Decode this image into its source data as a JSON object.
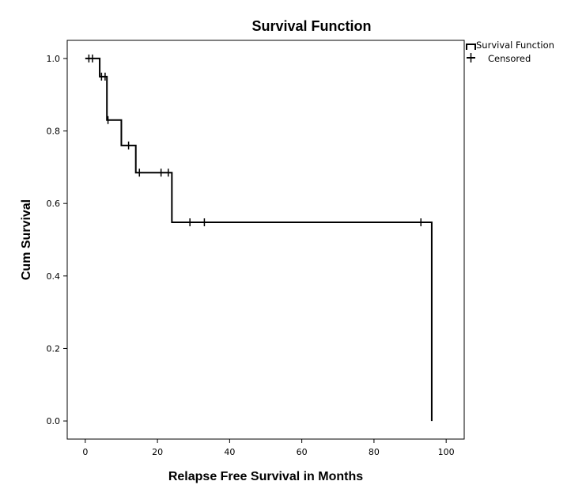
{
  "chart_data": {
    "type": "line",
    "title": "Survival Function",
    "xlabel": "Relapse Free Survival in Months",
    "ylabel": "Cum Survival",
    "xlim": [
      -5,
      105
    ],
    "ylim": [
      -0.05,
      1.05
    ],
    "x_ticks": [
      0,
      20,
      40,
      60,
      80,
      100
    ],
    "x_tick_labels": [
      "0",
      "20",
      "40",
      "60",
      "80",
      "100"
    ],
    "y_ticks": [
      0.0,
      0.2,
      0.4,
      0.6,
      0.8,
      1.0
    ],
    "y_tick_labels": [
      "0.0",
      "0.2",
      "0.4",
      "0.6",
      "0.8",
      "1.0"
    ],
    "grid": false,
    "legend_position": "top-right outside",
    "legend": [
      {
        "label": "Survival Function",
        "symbol": "step"
      },
      {
        "label": "Censored",
        "symbol": "plus"
      }
    ],
    "series": [
      {
        "name": "Survival Function",
        "step": [
          {
            "x": 0,
            "y": 1.0
          },
          {
            "x": 4,
            "y": 0.95
          },
          {
            "x": 6,
            "y": 0.83
          },
          {
            "x": 10,
            "y": 0.76
          },
          {
            "x": 14,
            "y": 0.685
          },
          {
            "x": 24,
            "y": 0.548
          },
          {
            "x": 96,
            "y": 0.0
          }
        ],
        "end_x": 96
      },
      {
        "name": "Censored",
        "points": [
          {
            "x": 1,
            "y": 1.0
          },
          {
            "x": 2,
            "y": 1.0
          },
          {
            "x": 4.5,
            "y": 0.95
          },
          {
            "x": 5.5,
            "y": 0.95
          },
          {
            "x": 6.3,
            "y": 0.83
          },
          {
            "x": 12,
            "y": 0.76
          },
          {
            "x": 15,
            "y": 0.685
          },
          {
            "x": 21,
            "y": 0.685
          },
          {
            "x": 23,
            "y": 0.685
          },
          {
            "x": 29,
            "y": 0.548
          },
          {
            "x": 33,
            "y": 0.548
          },
          {
            "x": 93,
            "y": 0.548
          }
        ]
      }
    ],
    "color": "#000000"
  }
}
